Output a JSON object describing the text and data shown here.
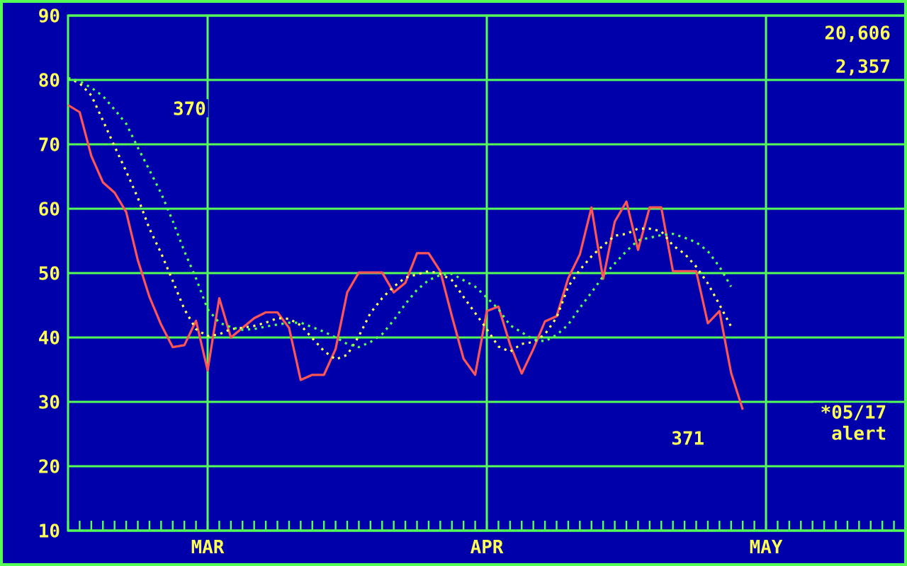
{
  "chart_data": {
    "type": "line",
    "categories": [
      null,
      null,
      null,
      null,
      null,
      null,
      null,
      null,
      null,
      null,
      null,
      null,
      "MAR",
      null,
      null,
      null,
      null,
      null,
      null,
      null,
      null,
      null,
      null,
      null,
      null,
      null,
      null,
      null,
      null,
      null,
      null,
      null,
      null,
      null,
      null,
      null,
      "APR",
      null,
      null,
      null,
      null,
      null,
      null,
      null,
      null,
      null,
      null,
      null,
      null,
      null,
      null,
      null,
      null,
      null,
      null,
      null,
      null,
      null,
      null,
      null,
      "MAY",
      null,
      null,
      null,
      null,
      null,
      null,
      null,
      null,
      null,
      null,
      null,
      null
    ],
    "ylim": [
      10,
      90
    ],
    "yticks": [
      10,
      20,
      30,
      40,
      50,
      60,
      70,
      80,
      90
    ],
    "grid": true,
    "series": [
      {
        "color": "#ff5555",
        "line_style": "solid",
        "values": [
          76.1,
          75.0,
          68.2,
          64.1,
          62.5,
          59.5,
          52.0,
          46.3,
          42.0,
          38.5,
          38.8,
          42.6,
          34.9,
          46.1,
          40.0,
          41.5,
          43.0,
          43.9,
          43.9,
          41.5,
          33.4,
          34.2,
          34.2,
          38.2,
          47.0,
          50.1,
          50.1,
          50.1,
          47.0,
          48.5,
          53.1,
          53.1,
          50.3,
          43.3,
          36.7,
          34.2,
          44.1,
          44.8,
          38.9,
          34.4,
          38.2,
          42.5,
          43.3,
          49.2,
          52.9,
          60.2,
          49.1,
          58.0,
          61.1,
          53.6,
          60.2,
          60.2,
          50.3,
          50.3,
          50.3,
          42.2,
          44.1,
          34.5,
          28.8,
          null,
          null,
          null,
          null,
          null,
          null,
          null,
          null,
          null,
          null,
          null,
          null,
          null,
          null
        ]
      },
      {
        "color": "#ffff55",
        "line_style": "dotted",
        "values": [
          80.3,
          79.5,
          77.6,
          73.7,
          69.7,
          65.8,
          61.7,
          56.9,
          53.1,
          48.8,
          44.4,
          41.3,
          40.2,
          40.5,
          41.3,
          41.5,
          41.8,
          42.3,
          43.0,
          42.9,
          41.9,
          39.9,
          37.9,
          36.6,
          37.3,
          40.2,
          43.8,
          46.1,
          47.9,
          49.3,
          49.8,
          50.3,
          49.9,
          48.9,
          46.3,
          43.8,
          41.3,
          38.6,
          37.8,
          39.0,
          39.3,
          40.5,
          43.1,
          47.9,
          50.5,
          52.6,
          54.3,
          55.8,
          56.1,
          56.9,
          56.9,
          56.5,
          54.3,
          53.0,
          51.0,
          48.4,
          45.1,
          41.7,
          null,
          null,
          null,
          null,
          null,
          null,
          null,
          null,
          null,
          null,
          null,
          null,
          null,
          null,
          null
        ]
      },
      {
        "color": "#55ff55",
        "line_style": "dotted",
        "values": [
          80.3,
          79.8,
          78.8,
          77.5,
          75.4,
          73.2,
          69.5,
          66.0,
          62.4,
          58.1,
          53.4,
          49.2,
          44.4,
          42.3,
          41.6,
          41.2,
          41.3,
          41.7,
          42.0,
          42.3,
          42.3,
          41.6,
          40.9,
          40.0,
          39.0,
          38.5,
          39.3,
          40.5,
          42.7,
          45.2,
          47.4,
          48.9,
          49.7,
          49.9,
          48.9,
          47.9,
          46.2,
          44.4,
          41.9,
          40.8,
          39.7,
          39.4,
          40.4,
          42.0,
          44.6,
          47.0,
          49.5,
          51.5,
          53.4,
          55.1,
          55.5,
          55.9,
          56.1,
          55.5,
          54.8,
          53.4,
          51.0,
          47.9,
          null,
          null,
          null,
          null,
          null,
          null,
          null,
          null,
          null,
          null,
          null,
          null,
          null,
          null,
          null
        ]
      }
    ],
    "annotations": [
      "20,606",
      "2,357",
      "370",
      "371",
      "*05/17 alert"
    ]
  }
}
